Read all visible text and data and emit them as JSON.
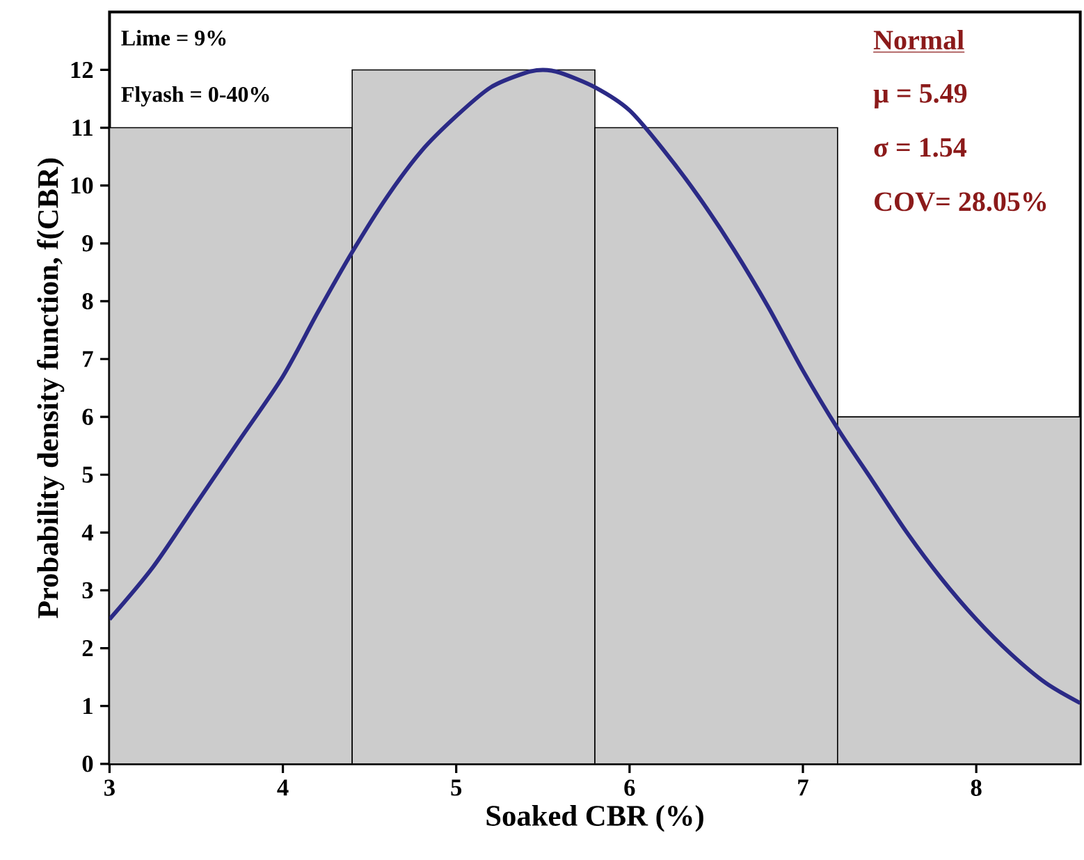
{
  "chart_data": {
    "type": "histogram",
    "xlabel": "Soaked CBR (%)",
    "ylabel": "Probability density function, f(CBR)",
    "bins": [
      3,
      4.4,
      5.8,
      7.2,
      8.6
    ],
    "values": [
      11,
      12,
      11,
      6
    ],
    "color": "#cccccc",
    "series": [
      {
        "type": "line",
        "color": "#2b2a86",
        "x": [
          3,
          3.25,
          3.5,
          3.75,
          4,
          4.2,
          4.4,
          4.6,
          4.8,
          5,
          5.2,
          5.4,
          5.5,
          5.6,
          5.8,
          6,
          6.2,
          6.4,
          6.6,
          6.8,
          7,
          7.2,
          7.4,
          7.6,
          7.8,
          8,
          8.2,
          8.4,
          8.6
        ],
        "values": [
          2.5,
          3.4,
          4.5,
          5.6,
          6.7,
          7.8,
          8.85,
          9.8,
          10.6,
          11.2,
          11.7,
          11.95,
          12,
          11.95,
          11.7,
          11.3,
          10.6,
          9.8,
          8.9,
          7.9,
          6.8,
          5.8,
          4.9,
          4,
          3.2,
          2.5,
          1.9,
          1.4,
          1.05
        ]
      }
    ],
    "xlim": [
      3,
      8.6
    ],
    "ylim": [
      0,
      13
    ],
    "xticks": [
      3,
      4,
      5,
      6,
      7,
      8
    ],
    "yticks": [
      0,
      1,
      2,
      3,
      4,
      5,
      6,
      7,
      8,
      9,
      10,
      11,
      12
    ],
    "grid": false,
    "annotations": [
      "Lime = 9%",
      "Flyash = 0-40%",
      "Normal",
      "μ = 5.49",
      "σ = 1.54",
      "COV= 28.05%"
    ]
  }
}
